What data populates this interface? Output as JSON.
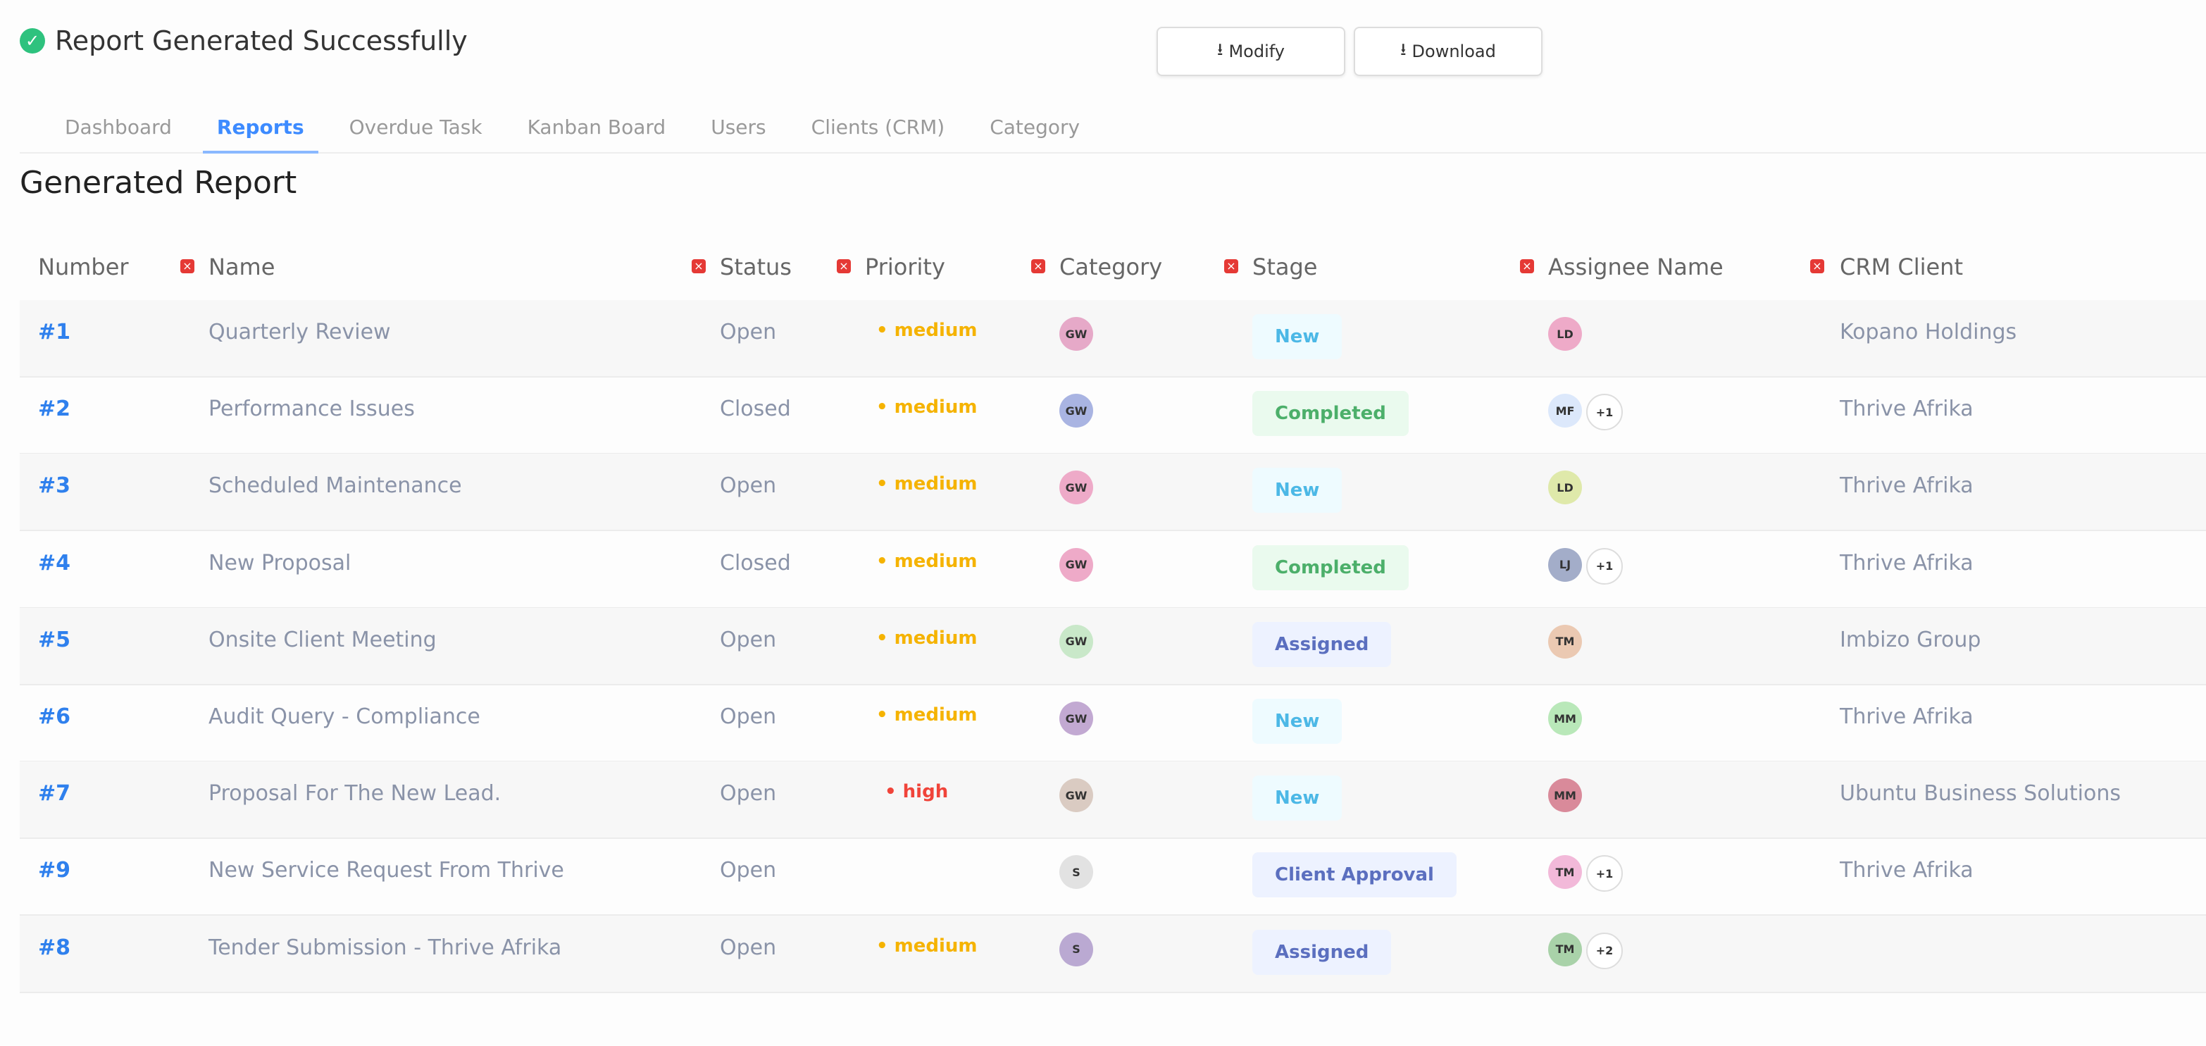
{
  "header": {
    "title": "Report Generated Successfully",
    "modify_label": "Modify",
    "download_label": "Download"
  },
  "tabs": [
    "Dashboard",
    "Reports",
    "Overdue Task",
    "Kanban Board",
    "Users",
    "Clients (CRM)",
    "Category"
  ],
  "active_tab": "Reports",
  "page_title": "Generated Report",
  "columns": [
    "Number",
    "Name",
    "Status",
    "Priority",
    "Category",
    "Stage",
    "Assignee Name",
    "CRM Client"
  ],
  "colors": {
    "accent": "#2f80ed",
    "medium": "#f5b301",
    "high": "#f0443a",
    "remove": "#e53935"
  },
  "rows": [
    {
      "number": "#1",
      "name": "Quarterly Review",
      "status": "Open",
      "priority": "medium",
      "category": "GW",
      "category_color": "#e6a9c8",
      "stage": "New",
      "assignees": [
        {
          "i": "LD",
          "c": "#eeaac8"
        }
      ],
      "extra": "",
      "client": "Kopano Holdings"
    },
    {
      "number": "#2",
      "name": "Performance Issues",
      "status": "Closed",
      "priority": "medium",
      "category": "GW",
      "category_color": "#a9b4e2",
      "stage": "Completed",
      "assignees": [
        {
          "i": "MF",
          "c": "#dce8fb"
        }
      ],
      "extra": "+1",
      "client": "Thrive Afrika"
    },
    {
      "number": "#3",
      "name": "Scheduled Maintenance",
      "status": "Open",
      "priority": "medium",
      "category": "GW",
      "category_color": "#eeaac8",
      "stage": "New",
      "assignees": [
        {
          "i": "LD",
          "c": "#dfe9aa"
        }
      ],
      "extra": "",
      "client": "Thrive Afrika"
    },
    {
      "number": "#4",
      "name": "New Proposal",
      "status": "Closed",
      "priority": "medium",
      "category": "GW",
      "category_color": "#eeaac8",
      "stage": "Completed",
      "assignees": [
        {
          "i": "LJ",
          "c": "#a3adc9"
        }
      ],
      "extra": "+1",
      "client": "Thrive Afrika"
    },
    {
      "number": "#5",
      "name": "Onsite Client Meeting",
      "status": "Open",
      "priority": "medium",
      "category": "GW",
      "category_color": "#c9e8c9",
      "stage": "Assigned",
      "assignees": [
        {
          "i": "TM",
          "c": "#ebc9b2"
        }
      ],
      "extra": "",
      "client": "Imbizo Group"
    },
    {
      "number": "#6",
      "name": "Audit Query - Compliance",
      "status": "Open",
      "priority": "medium",
      "category": "GW",
      "category_color": "#c2a9d2",
      "stage": "New",
      "assignees": [
        {
          "i": "MM",
          "c": "#b9e8b9"
        }
      ],
      "extra": "",
      "client": "Thrive Afrika"
    },
    {
      "number": "#7",
      "name": "Proposal For The New Lead.",
      "status": "Open",
      "priority": "high",
      "category": "GW",
      "category_color": "#dacbc2",
      "stage": "New",
      "assignees": [
        {
          "i": "MM",
          "c": "#d98a9a"
        }
      ],
      "extra": "",
      "client": "Ubuntu Business Solutions"
    },
    {
      "number": "#9",
      "name": "New Service Request From Thrive",
      "status": "Open",
      "priority": "",
      "category": "S",
      "category_color": "#e2e2e2",
      "stage": "Client Approval",
      "assignees": [
        {
          "i": "TM",
          "c": "#f2b9d9"
        }
      ],
      "extra": "+1",
      "client": "Thrive Afrika"
    },
    {
      "number": "#8",
      "name": "Tender Submission - Thrive Afrika",
      "status": "Open",
      "priority": "medium",
      "category": "S",
      "category_color": "#baa9d2",
      "stage": "Assigned",
      "assignees": [
        {
          "i": "TM",
          "c": "#a9d2a9"
        }
      ],
      "extra": "+2",
      "client": ""
    }
  ]
}
